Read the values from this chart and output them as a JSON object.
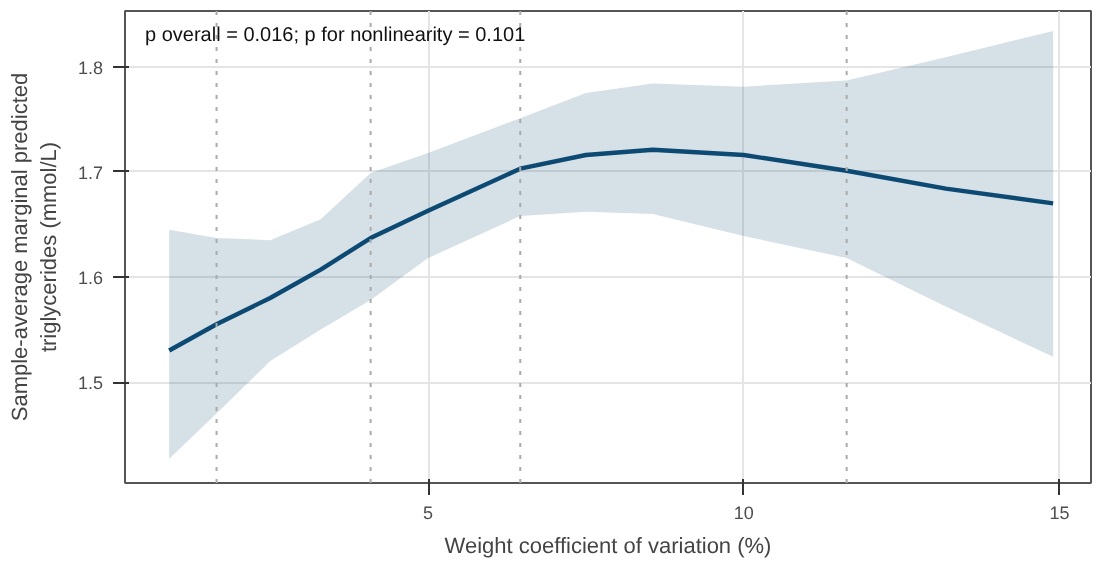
{
  "chart_data": {
    "type": "line",
    "xlabel": "Weight coefficient of variation (%)",
    "ylabel": "Sample-average marginal predicted\ntriglycerides (mmol/L)",
    "annotations": [
      "p overall = 0.016;  p for nonlinearity = 0.101"
    ],
    "series": [
      {
        "color": "#0d4a73",
        "x": [
          0.9,
          1.65,
          2.5,
          3.3,
          4.09,
          5,
          6.46,
          7.5,
          8.56,
          10,
          11.63,
          13.2,
          14.9
        ],
        "values": [
          1.53,
          1.555,
          1.58,
          1.607,
          1.637,
          1.663,
          1.703,
          1.716,
          1.721,
          1.716,
          1.701,
          1.684,
          1.67
        ],
        "lower": [
          1.427,
          1.47,
          1.52,
          1.55,
          1.578,
          1.618,
          1.658,
          1.662,
          1.66,
          1.639,
          1.618,
          1.572,
          1.524
        ],
        "upper": [
          1.645,
          1.637,
          1.635,
          1.655,
          1.699,
          1.718,
          1.751,
          1.775,
          1.784,
          1.781,
          1.787,
          1.809,
          1.834
        ]
      }
    ],
    "ref_lines": [
      {
        "axis": "x",
        "value": 1.65,
        "color": "#aaaaaa",
        "line_style": "dotted"
      },
      {
        "axis": "x",
        "value": 4.09,
        "color": "#aaaaaa",
        "line_style": "dotted"
      },
      {
        "axis": "x",
        "value": 6.46,
        "color": "#aaaaaa",
        "line_style": "dotted"
      },
      {
        "axis": "x",
        "value": 11.63,
        "color": "#aaaaaa",
        "line_style": "dotted"
      }
    ],
    "xlim": [
      0.2,
      15.5
    ],
    "xticks": [
      5,
      10,
      15
    ],
    "ylim": [
      1.404,
      1.853
    ],
    "yticks": [
      1.5,
      1.6,
      1.7,
      1.8
    ],
    "grid": true,
    "marker": "none",
    "line_style": "solid"
  }
}
